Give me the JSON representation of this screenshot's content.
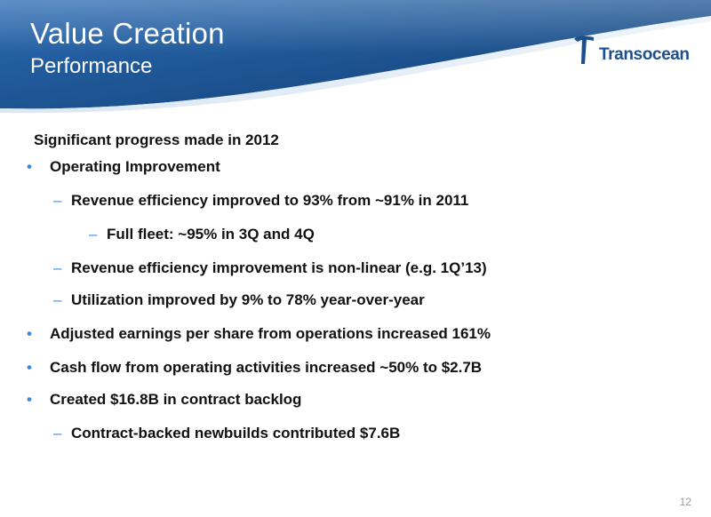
{
  "header": {
    "title": "Value Creation",
    "subtitle": "Performance",
    "logo_text": "Transocean"
  },
  "body": {
    "intro": "Significant progress made in 2012",
    "items": [
      {
        "level": 1,
        "marker": "•",
        "text": "Operating Improvement"
      },
      {
        "level": 2,
        "marker": "–",
        "text": "Revenue efficiency improved to 93% from ~91% in 2011"
      },
      {
        "level": 3,
        "marker": "–",
        "text": "Full fleet: ~95% in 3Q and 4Q"
      },
      {
        "level": 2,
        "marker": "–",
        "text": "Revenue efficiency improvement is non-linear (e.g. 1Q’13)"
      },
      {
        "level": 2,
        "marker": "–",
        "text": "Utilization improved by 9% to 78% year-over-year"
      },
      {
        "level": 1,
        "marker": "•",
        "text": "Adjusted earnings per share from operations increased 161%"
      },
      {
        "level": 1,
        "marker": "•",
        "text": "Cash flow from operating activities increased ~50% to $2.7B"
      },
      {
        "level": 1,
        "marker": "•",
        "text": "Created $16.8B in contract backlog"
      },
      {
        "level": 2,
        "marker": "–",
        "text": "Contract-backed newbuilds contributed $7.6B"
      }
    ]
  },
  "footer": {
    "page_number": "12"
  },
  "colors": {
    "header_dark": "#0f3d78",
    "header_mid": "#2f6db3",
    "header_light": "#c9dcef",
    "bullet": "#3b8be0",
    "logo": "#1b4f8f",
    "text": "#111111"
  }
}
